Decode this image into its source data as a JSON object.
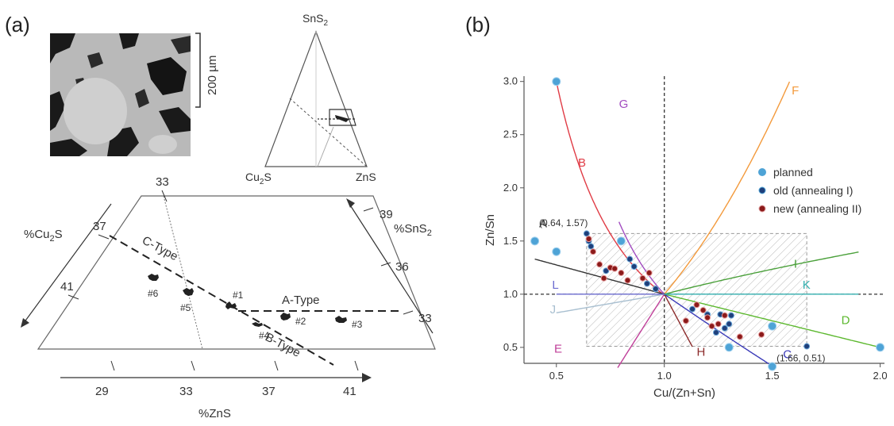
{
  "panel_a": {
    "label": "(a)",
    "scale_bar": "200 µm",
    "triangle_small": {
      "top": "SnS",
      "top_sub": "2",
      "left": "Cu",
      "left_sub": "2",
      "left_after": "S",
      "right": "ZnS"
    },
    "axis_cu2s": {
      "prefix": "%Cu",
      "sub": "2",
      "suffix": "S",
      "ticks": [
        "37",
        "41"
      ]
    },
    "axis_sns2": {
      "prefix": "%SnS",
      "sub": "2",
      "ticks": [
        "39",
        "36",
        "33"
      ]
    },
    "axis_zns": {
      "label": "%ZnS",
      "ticks": [
        "29",
        "33",
        "37",
        "41"
      ]
    },
    "top_tick": "33",
    "types": {
      "a": "A-Type",
      "b": "B-Type",
      "c": "C-Type"
    },
    "samples": [
      "#1",
      "#2",
      "#3",
      "#4",
      "#5",
      "#6"
    ]
  },
  "panel_b": {
    "label": "(b)",
    "xlabel": "Cu/(Zn+Sn)",
    "ylabel": "Zn/Sn",
    "annotations": {
      "a_point": "(0.64, 1.57)",
      "c_point": "(1.66, 0.51)"
    },
    "legend": {
      "planned": "planned",
      "old": "old (annealing I)",
      "new": "new (annealing II)"
    },
    "line_labels": [
      "A",
      "B",
      "C",
      "D",
      "E",
      "F",
      "G",
      "H",
      "I",
      "J",
      "K",
      "L"
    ]
  },
  "colors": {
    "planned": "#4ea3d6",
    "old": "#1f3f7a",
    "new": "#8b1a1a",
    "A": "#333333",
    "B": "#e03b45",
    "C": "#3a3ab8",
    "D": "#5cb82e",
    "E": "#c0409a",
    "F": "#f39a3c",
    "G": "#a24cc0",
    "H": "#8b2a2a",
    "I": "#4aa03a",
    "J": "#a8bfd0",
    "K": "#35b0b0",
    "L": "#6d6dd0"
  },
  "chart_data": [
    {
      "type": "ternary",
      "title": "",
      "vertices": [
        "SnS2",
        "Cu2S",
        "ZnS"
      ],
      "axes": {
        "Cu2S_ticks": [
          37,
          41
        ],
        "SnS2_ticks": [
          39,
          36,
          33
        ],
        "ZnS_ticks": [
          29,
          33,
          37,
          41
        ]
      },
      "sample_labels": [
        "#1",
        "#2",
        "#3",
        "#4",
        "#5",
        "#6"
      ]
    },
    {
      "type": "scatter",
      "xlabel": "Cu/(Zn+Sn)",
      "ylabel": "Zn/Sn",
      "xlim": [
        0.35,
        2.02
      ],
      "ylim": [
        0.35,
        3.05
      ],
      "xticks": [
        0.5,
        1.0,
        1.5,
        2.0
      ],
      "yticks": [
        0.5,
        1.0,
        1.5,
        2.0,
        2.5,
        3.0
      ],
      "series": [
        {
          "name": "planned",
          "x": [
            0.4,
            0.5,
            0.5,
            0.8,
            1.5,
            1.5,
            1.3,
            2.0
          ],
          "y": [
            1.5,
            1.4,
            3.0,
            1.5,
            0.7,
            0.32,
            0.5,
            0.5
          ]
        },
        {
          "name": "old (annealing I)",
          "x": [
            0.64,
            0.65,
            0.66,
            0.73,
            0.84,
            0.86,
            0.92,
            0.96,
            1.13,
            1.2,
            1.24,
            1.26,
            1.28,
            1.3,
            1.31,
            1.66
          ],
          "y": [
            1.57,
            1.5,
            1.45,
            1.22,
            1.33,
            1.26,
            1.1,
            1.05,
            0.86,
            0.81,
            0.64,
            0.81,
            0.68,
            0.72,
            0.8,
            0.51
          ]
        },
        {
          "name": "new (annealing II)",
          "x": [
            0.65,
            0.67,
            0.7,
            0.72,
            0.75,
            0.77,
            0.8,
            0.83,
            0.9,
            0.93,
            1.1,
            1.15,
            1.18,
            1.2,
            1.22,
            1.25,
            1.28,
            1.35,
            1.45
          ],
          "y": [
            1.52,
            1.4,
            1.28,
            1.15,
            1.25,
            1.24,
            1.2,
            1.13,
            1.15,
            1.2,
            0.75,
            0.9,
            0.85,
            0.78,
            0.7,
            0.72,
            0.8,
            0.6,
            0.62
          ]
        }
      ],
      "reference_lines": [
        "A",
        "B",
        "C",
        "D",
        "E",
        "F",
        "G",
        "H",
        "I",
        "J",
        "K",
        "L"
      ],
      "annotations": [
        "(0.64, 1.57)",
        "(1.66, 0.51)"
      ],
      "legend_position": "right"
    }
  ]
}
